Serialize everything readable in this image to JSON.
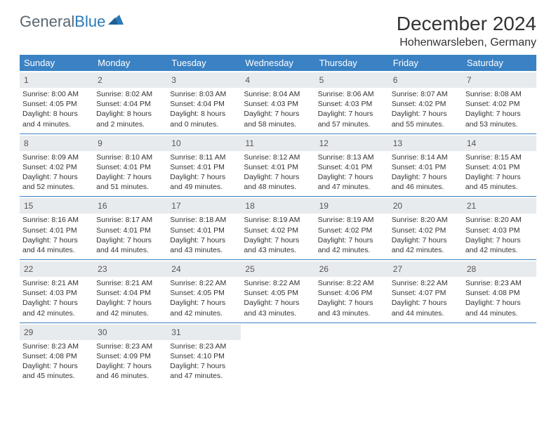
{
  "logo": {
    "text1": "General",
    "text2": "Blue"
  },
  "title": "December 2024",
  "location": "Hohenwarsleben, Germany",
  "header_bg": "#3b82c4",
  "daynum_bg": "#e8ebee",
  "weekdays": [
    "Sunday",
    "Monday",
    "Tuesday",
    "Wednesday",
    "Thursday",
    "Friday",
    "Saturday"
  ],
  "cell_font_size": 10.5,
  "weeks": [
    [
      {
        "n": "1",
        "sr": "8:00 AM",
        "ss": "4:05 PM",
        "dl": "8 hours and 4 minutes."
      },
      {
        "n": "2",
        "sr": "8:02 AM",
        "ss": "4:04 PM",
        "dl": "8 hours and 2 minutes."
      },
      {
        "n": "3",
        "sr": "8:03 AM",
        "ss": "4:04 PM",
        "dl": "8 hours and 0 minutes."
      },
      {
        "n": "4",
        "sr": "8:04 AM",
        "ss": "4:03 PM",
        "dl": "7 hours and 58 minutes."
      },
      {
        "n": "5",
        "sr": "8:06 AM",
        "ss": "4:03 PM",
        "dl": "7 hours and 57 minutes."
      },
      {
        "n": "6",
        "sr": "8:07 AM",
        "ss": "4:02 PM",
        "dl": "7 hours and 55 minutes."
      },
      {
        "n": "7",
        "sr": "8:08 AM",
        "ss": "4:02 PM",
        "dl": "7 hours and 53 minutes."
      }
    ],
    [
      {
        "n": "8",
        "sr": "8:09 AM",
        "ss": "4:02 PM",
        "dl": "7 hours and 52 minutes."
      },
      {
        "n": "9",
        "sr": "8:10 AM",
        "ss": "4:01 PM",
        "dl": "7 hours and 51 minutes."
      },
      {
        "n": "10",
        "sr": "8:11 AM",
        "ss": "4:01 PM",
        "dl": "7 hours and 49 minutes."
      },
      {
        "n": "11",
        "sr": "8:12 AM",
        "ss": "4:01 PM",
        "dl": "7 hours and 48 minutes."
      },
      {
        "n": "12",
        "sr": "8:13 AM",
        "ss": "4:01 PM",
        "dl": "7 hours and 47 minutes."
      },
      {
        "n": "13",
        "sr": "8:14 AM",
        "ss": "4:01 PM",
        "dl": "7 hours and 46 minutes."
      },
      {
        "n": "14",
        "sr": "8:15 AM",
        "ss": "4:01 PM",
        "dl": "7 hours and 45 minutes."
      }
    ],
    [
      {
        "n": "15",
        "sr": "8:16 AM",
        "ss": "4:01 PM",
        "dl": "7 hours and 44 minutes."
      },
      {
        "n": "16",
        "sr": "8:17 AM",
        "ss": "4:01 PM",
        "dl": "7 hours and 44 minutes."
      },
      {
        "n": "17",
        "sr": "8:18 AM",
        "ss": "4:01 PM",
        "dl": "7 hours and 43 minutes."
      },
      {
        "n": "18",
        "sr": "8:19 AM",
        "ss": "4:02 PM",
        "dl": "7 hours and 43 minutes."
      },
      {
        "n": "19",
        "sr": "8:19 AM",
        "ss": "4:02 PM",
        "dl": "7 hours and 42 minutes."
      },
      {
        "n": "20",
        "sr": "8:20 AM",
        "ss": "4:02 PM",
        "dl": "7 hours and 42 minutes."
      },
      {
        "n": "21",
        "sr": "8:20 AM",
        "ss": "4:03 PM",
        "dl": "7 hours and 42 minutes."
      }
    ],
    [
      {
        "n": "22",
        "sr": "8:21 AM",
        "ss": "4:03 PM",
        "dl": "7 hours and 42 minutes."
      },
      {
        "n": "23",
        "sr": "8:21 AM",
        "ss": "4:04 PM",
        "dl": "7 hours and 42 minutes."
      },
      {
        "n": "24",
        "sr": "8:22 AM",
        "ss": "4:05 PM",
        "dl": "7 hours and 42 minutes."
      },
      {
        "n": "25",
        "sr": "8:22 AM",
        "ss": "4:05 PM",
        "dl": "7 hours and 43 minutes."
      },
      {
        "n": "26",
        "sr": "8:22 AM",
        "ss": "4:06 PM",
        "dl": "7 hours and 43 minutes."
      },
      {
        "n": "27",
        "sr": "8:22 AM",
        "ss": "4:07 PM",
        "dl": "7 hours and 44 minutes."
      },
      {
        "n": "28",
        "sr": "8:23 AM",
        "ss": "4:08 PM",
        "dl": "7 hours and 44 minutes."
      }
    ],
    [
      {
        "n": "29",
        "sr": "8:23 AM",
        "ss": "4:08 PM",
        "dl": "7 hours and 45 minutes."
      },
      {
        "n": "30",
        "sr": "8:23 AM",
        "ss": "4:09 PM",
        "dl": "7 hours and 46 minutes."
      },
      {
        "n": "31",
        "sr": "8:23 AM",
        "ss": "4:10 PM",
        "dl": "7 hours and 47 minutes."
      },
      null,
      null,
      null,
      null
    ]
  ]
}
